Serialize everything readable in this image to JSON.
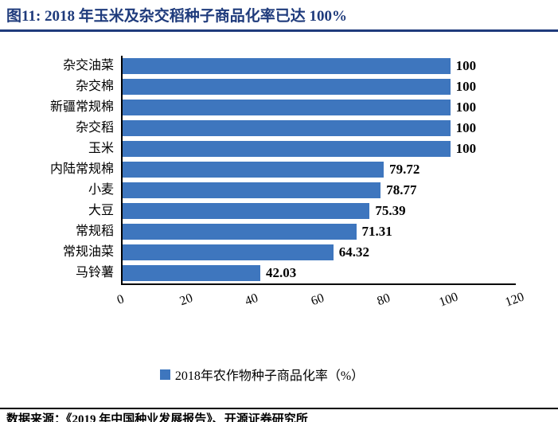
{
  "theme": {
    "accent_navy": "#1F3B7C",
    "bar_blue": "#3E76BE",
    "axis_black": "#000000"
  },
  "header": {
    "title": "图11:  2018 年玉米及杂交稻种子商品化率已达 100%"
  },
  "chart_data": {
    "type": "bar",
    "orientation": "horizontal",
    "title": "2018 年玉米及杂交稻种子商品化率已达 100%",
    "categories": [
      "杂交油菜",
      "杂交棉",
      "新疆常规棉",
      "杂交稻",
      "玉米",
      "内陆常规棉",
      "小麦",
      "大豆",
      "常规稻",
      "常规油菜",
      "马铃薯"
    ],
    "values": [
      100,
      100,
      100,
      100,
      100,
      79.72,
      78.77,
      75.39,
      71.31,
      64.32,
      42.03
    ],
    "value_labels": [
      "100",
      "100",
      "100",
      "100",
      "100",
      "79.72",
      "78.77",
      "75.39",
      "71.31",
      "64.32",
      "42.03"
    ],
    "x_ticks": [
      0,
      20,
      40,
      60,
      80,
      100,
      120
    ],
    "xlim": [
      0,
      120
    ],
    "grid": false,
    "legend": "2018年农作物种子商品化率（%）",
    "legend_position": "bottom-center"
  },
  "footer": {
    "source": "数据来源：《2019 年中国种业发展报告》、开源证券研究所"
  }
}
